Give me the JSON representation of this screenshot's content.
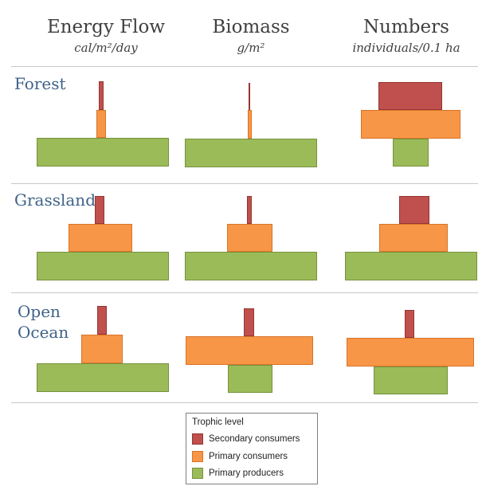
{
  "columns": [
    {
      "title": "Energy Flow",
      "unit": "cal/m²/day"
    },
    {
      "title": "Biomass",
      "unit": "g/m²"
    },
    {
      "title": "Numbers",
      "unit": "individuals/0.1 ha"
    }
  ],
  "rows": [
    {
      "label_lines": [
        "Forest"
      ]
    },
    {
      "label_lines": [
        "Grassland"
      ]
    },
    {
      "label_lines": [
        "Open",
        "Ocean"
      ]
    }
  ],
  "legend": {
    "title": "Trophic level",
    "items": [
      {
        "label": "Secondary consumers",
        "color": "#c0504d"
      },
      {
        "label": "Primary consumers",
        "color": "#f79646"
      },
      {
        "label": "Primary producers",
        "color": "#9bbb59"
      }
    ]
  },
  "colors": {
    "primary_producers": "#9bbb59",
    "primary_consumers": "#f79646",
    "secondary_consumers": "#c0504d",
    "row_label": "#3f6289"
  }
}
